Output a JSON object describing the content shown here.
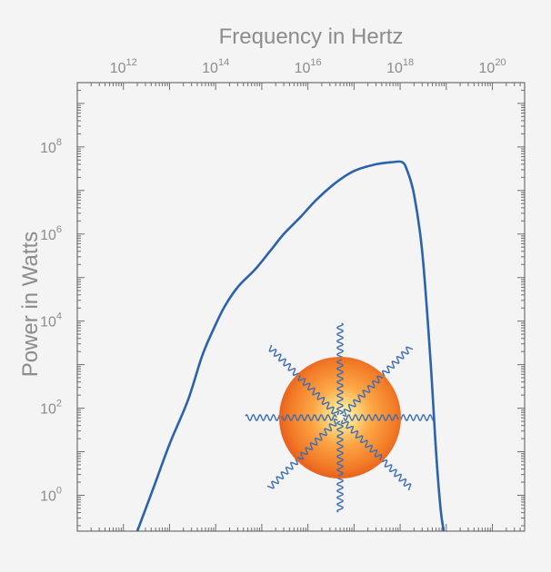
{
  "chart_data": {
    "type": "line",
    "xlabel": "Frequency in Hertz",
    "ylabel": "Power in Watts",
    "x_scale": "log",
    "y_scale": "log",
    "xlim": [
      100000000000.0,
      5e+20
    ],
    "ylim": [
      0.15,
      3000000000.0
    ],
    "x_ticks": [
      {
        "value": 1000000000000.0,
        "base": "10",
        "exp": "12"
      },
      {
        "value": 100000000000000.0,
        "base": "10",
        "exp": "14"
      },
      {
        "value": 1e+16,
        "base": "10",
        "exp": "16"
      },
      {
        "value": 1e+18,
        "base": "10",
        "exp": "18"
      },
      {
        "value": 1e+20,
        "base": "10",
        "exp": "20"
      }
    ],
    "y_ticks": [
      {
        "value": 1,
        "base": "10",
        "exp": "0"
      },
      {
        "value": 100,
        "base": "10",
        "exp": "2"
      },
      {
        "value": 10000,
        "base": "10",
        "exp": "4"
      },
      {
        "value": 1000000,
        "base": "10",
        "exp": "6"
      },
      {
        "value": 100000000,
        "base": "10",
        "exp": "8"
      }
    ],
    "grid": false,
    "series": [
      {
        "color": "#2a62ad",
        "x": [
          2000000000000.0,
          4500000000000.0,
          10000000000000.0,
          25000000000000.0,
          50000000000000.0,
          80000000000000.0,
          150000000000000.0,
          300000000000000.0,
          700000000000000.0,
          1500000000000000.0,
          3000000000000000.0,
          7000000000000000.0,
          1.5e+16,
          4e+16,
          1e+17,
          3e+17,
          7e+17,
          1.1e+18,
          1.4e+18,
          2e+18,
          3e+18,
          4.5e+18,
          6e+18,
          7.5e+18,
          8.8e+18
        ],
        "y": [
          0.15,
          1.5,
          15,
          150,
          1500,
          5000,
          20000,
          60000,
          150000,
          400000,
          1000000,
          2500000,
          6000000,
          15000000,
          28000000,
          40000000,
          45000000,
          45000000,
          30000000,
          8000000,
          400000,
          1500,
          10,
          0.5,
          0.15
        ]
      }
    ]
  },
  "illustration": {
    "name": "radiating-sphere",
    "sphere_colors": [
      "#fffff0",
      "#ffe38a",
      "#fca646",
      "#f27a26",
      "#e5581b"
    ],
    "wave_color": "#3c6cb3"
  }
}
